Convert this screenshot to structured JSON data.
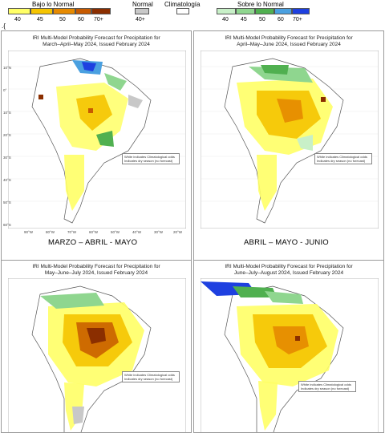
{
  "legend": {
    "below_title": "Bajo lo Normal",
    "normal_title": "Normal",
    "climatology_title": "Climatología",
    "above_title": "Sobre lo Normal",
    "below_ticks": [
      "40",
      "45",
      "50",
      "60",
      "70+"
    ],
    "normal_tick": "40+",
    "above_ticks": [
      "40",
      "45",
      "50",
      "60",
      "70+"
    ],
    "below_colors": [
      "#ffff66",
      "#f5c400",
      "#e68a00",
      "#c75a00",
      "#8b2e00"
    ],
    "normal_color": "#c8c8c8",
    "climatology_color": "#ffffff",
    "above_colors": [
      "#c8f0c8",
      "#8fd68f",
      "#50b050",
      "#4aa0e0",
      "#1e40e0"
    ]
  },
  "stray_text": ".{",
  "panels": [
    {
      "title_line1": "IRI Multi-Model Probability Forecast for Precipitation for",
      "title_line2": "March–April–May 2024, Issued February 2024",
      "caption": "MARZO – ABRIL - MAYO"
    },
    {
      "title_line1": "IRI Multi-Model Probability Forecast for Precipitation for",
      "title_line2": "April–May–June 2024, Issued February 2024",
      "caption": "ABRIL – MAYO - JUNIO"
    },
    {
      "title_line1": "IRI Multi-Model Probability Forecast for Precipitation for",
      "title_line2": "May–June–July 2024, Issued February 2024",
      "caption": ""
    },
    {
      "title_line1": "IRI Multi-Model Probability Forecast for Precipitation for",
      "title_line2": "June–July–August 2024, Issued February 2024",
      "caption": ""
    }
  ],
  "map_note_line1": "White indicates Climatological odds",
  "map_note_line2": "Indicates dry season (no forecast)",
  "lat_labels": [
    "10°N",
    "0°",
    "10°S",
    "20°S",
    "30°S",
    "40°S",
    "50°S",
    "60°S"
  ],
  "lon_labels": [
    "90°W",
    "80°W",
    "70°W",
    "60°W",
    "50°W",
    "40°W",
    "30°W",
    "20°W"
  ]
}
